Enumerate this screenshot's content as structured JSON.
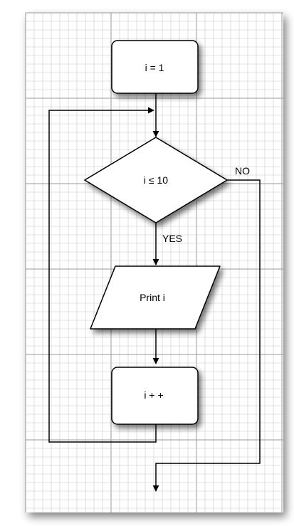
{
  "nodes": {
    "init": {
      "label": "i = 1",
      "shape": "rounded-rect"
    },
    "condition": {
      "label": "i ≤ 10",
      "shape": "diamond"
    },
    "print": {
      "label": "Print i",
      "shape": "parallelogram"
    },
    "increment": {
      "label": "i + +",
      "shape": "rounded-rect"
    }
  },
  "edges": {
    "yes_label": "YES",
    "no_label": "NO"
  },
  "colors": {
    "grid_minor": "#c8c8c8",
    "grid_major": "#9a9a9a",
    "stroke": "#000000",
    "node_fill": "#ffffff"
  }
}
